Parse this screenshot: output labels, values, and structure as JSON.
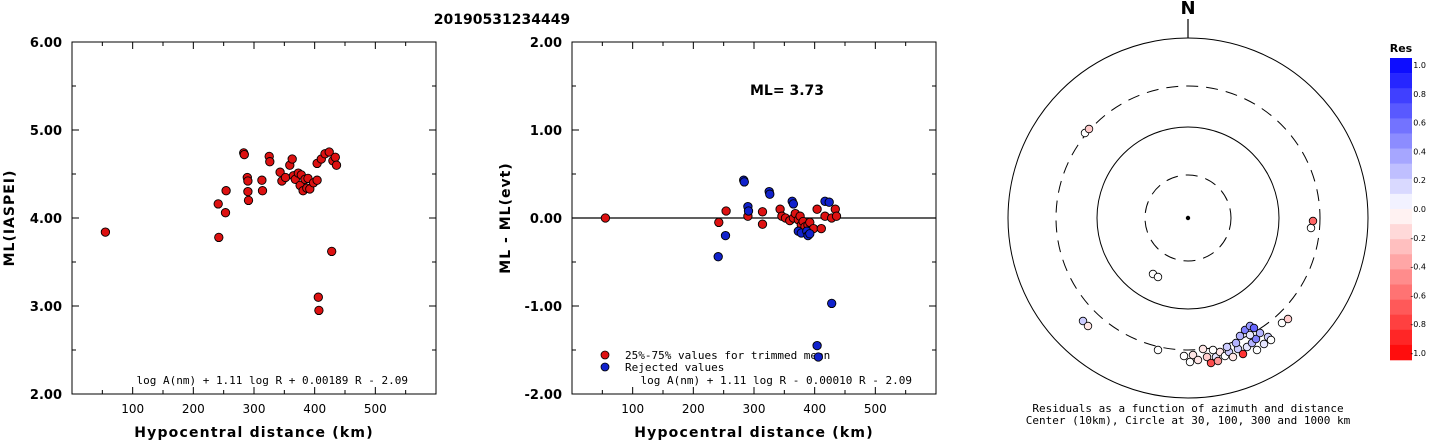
{
  "title": "20190531234449",
  "chart_data": [
    {
      "type": "scatter",
      "ylabel": "ML(IASPEI)",
      "xlabel": "Hypocentral distance (km)",
      "xlim": [
        0,
        600
      ],
      "ylim": [
        2.0,
        6.0
      ],
      "x_ticks": [
        "100",
        "200",
        "300",
        "400",
        "500"
      ],
      "y_ticks": [
        "2.00",
        "3.00",
        "4.00",
        "5.00",
        "6.00"
      ],
      "formula": "log A(nm) + 1.11 log R + 0.00189 R - 2.09",
      "points": [
        [
          55,
          3.84
        ],
        [
          241,
          4.16
        ],
        [
          242,
          3.78
        ],
        [
          253,
          4.06
        ],
        [
          254,
          4.31
        ],
        [
          283,
          4.74
        ],
        [
          284,
          4.72
        ],
        [
          289,
          4.46
        ],
        [
          290,
          4.42
        ],
        [
          290,
          4.3
        ],
        [
          291,
          4.2
        ],
        [
          313,
          4.43
        ],
        [
          314,
          4.31
        ],
        [
          325,
          4.7
        ],
        [
          326,
          4.64
        ],
        [
          343,
          4.52
        ],
        [
          346,
          4.42
        ],
        [
          352,
          4.46
        ],
        [
          359,
          4.6
        ],
        [
          363,
          4.67
        ],
        [
          365,
          4.48
        ],
        [
          368,
          4.44
        ],
        [
          373,
          4.51
        ],
        [
          376,
          4.37
        ],
        [
          378,
          4.49
        ],
        [
          381,
          4.31
        ],
        [
          384,
          4.44
        ],
        [
          387,
          4.34
        ],
        [
          389,
          4.45
        ],
        [
          392,
          4.33
        ],
        [
          398,
          4.4
        ],
        [
          404,
          4.43
        ],
        [
          406,
          3.1
        ],
        [
          407,
          2.95
        ],
        [
          404,
          4.62
        ],
        [
          411,
          4.67
        ],
        [
          417,
          4.73
        ],
        [
          424,
          4.75
        ],
        [
          428,
          3.62
        ],
        [
          430,
          4.65
        ],
        [
          434,
          4.69
        ],
        [
          436,
          4.6
        ]
      ]
    },
    {
      "type": "scatter",
      "ylabel": "ML - ML(evt)",
      "xlabel": "Hypocentral distance (km)",
      "xlim": [
        0,
        600
      ],
      "ylim": [
        -2.0,
        2.0
      ],
      "x_ticks": [
        "100",
        "200",
        "300",
        "400",
        "500"
      ],
      "y_ticks": [
        "-2.00",
        "-1.00",
        "0.00",
        "1.00",
        "2.00"
      ],
      "annotation": "ML= 3.73",
      "formula": "log A(nm) + 1.11 log R - 0.00010 R - 2.09",
      "legend": [
        {
          "label": "25%-75% values for trimmed mean",
          "color": "#dd1111"
        },
        {
          "label": "Rejected values",
          "color": "#1122cc"
        }
      ],
      "series": [
        {
          "name": "25%-75% values for trimmed mean",
          "color": "#dd1111",
          "points": [
            [
              55,
              0.0
            ],
            [
              242,
              -0.05
            ],
            [
              254,
              0.08
            ],
            [
              290,
              0.02
            ],
            [
              314,
              0.07
            ],
            [
              314,
              -0.07
            ],
            [
              343,
              0.1
            ],
            [
              346,
              0.02
            ],
            [
              352,
              0.0
            ],
            [
              359,
              -0.03
            ],
            [
              365,
              0.0
            ],
            [
              368,
              0.05
            ],
            [
              373,
              -0.02
            ],
            [
              376,
              0.02
            ],
            [
              378,
              -0.08
            ],
            [
              381,
              -0.04
            ],
            [
              384,
              -0.1
            ],
            [
              389,
              -0.08
            ],
            [
              392,
              -0.05
            ],
            [
              398,
              -0.12
            ],
            [
              404,
              0.1
            ],
            [
              411,
              -0.12
            ],
            [
              417,
              0.02
            ],
            [
              428,
              0.0
            ],
            [
              434,
              0.1
            ],
            [
              436,
              0.02
            ]
          ]
        },
        {
          "name": "Rejected values",
          "color": "#1122cc",
          "points": [
            [
              241,
              -0.44
            ],
            [
              253,
              -0.2
            ],
            [
              283,
              0.43
            ],
            [
              284,
              0.41
            ],
            [
              290,
              0.13
            ],
            [
              291,
              0.08
            ],
            [
              325,
              0.3
            ],
            [
              326,
              0.27
            ],
            [
              363,
              0.19
            ],
            [
              365,
              0.16
            ],
            [
              373,
              -0.15
            ],
            [
              378,
              -0.17
            ],
            [
              387,
              -0.15
            ],
            [
              389,
              -0.2
            ],
            [
              392,
              -0.18
            ],
            [
              404,
              -1.45
            ],
            [
              406,
              -1.58
            ],
            [
              417,
              0.19
            ],
            [
              424,
              0.18
            ],
            [
              428,
              -0.97
            ]
          ]
        }
      ]
    },
    {
      "type": "polar",
      "north_label": "N",
      "caption_line1": "Residuals as a function of azimuth and distance",
      "caption_line2": "Center (10km), Circle at 30, 100, 300 and 1000 km",
      "colorbar": {
        "title": "Res",
        "labels": [
          "1.0",
          "0.8",
          "0.6",
          "0.4",
          "0.2",
          "0.0",
          "-0.2",
          "-0.4",
          "-0.6",
          "-0.8",
          "-1.0"
        ]
      },
      "points": [
        [
          1085,
          133,
          0.0
        ],
        [
          1089,
          129,
          -0.2
        ],
        [
          1311,
          228,
          0.0
        ],
        [
          1313,
          221,
          -0.6
        ],
        [
          1153,
          274,
          0.0
        ],
        [
          1158,
          277,
          0.0
        ],
        [
          1083,
          321,
          0.2
        ],
        [
          1088,
          326,
          -0.1
        ],
        [
          1158,
          350,
          0.0
        ],
        [
          1184,
          356,
          0.0
        ],
        [
          1190,
          362,
          0.0
        ],
        [
          1193,
          355,
          -0.1
        ],
        [
          1203,
          349,
          -0.1
        ],
        [
          1207,
          357,
          -0.2
        ],
        [
          1211,
          363,
          -0.7
        ],
        [
          1216,
          357,
          0.1
        ],
        [
          1220,
          352,
          -0.1
        ],
        [
          1225,
          356,
          0.0
        ],
        [
          1229,
          352,
          0.2
        ],
        [
          1233,
          357,
          -0.1
        ],
        [
          1238,
          349,
          0.2
        ],
        [
          1243,
          354,
          -0.8
        ],
        [
          1247,
          347,
          0.1
        ],
        [
          1252,
          343,
          0.3
        ],
        [
          1256,
          339,
          0.5
        ],
        [
          1260,
          333,
          0.3
        ],
        [
          1264,
          344,
          0.1
        ],
        [
          1268,
          337,
          0.2
        ],
        [
          1271,
          340,
          0.0
        ],
        [
          1282,
          323,
          0.0
        ],
        [
          1288,
          319,
          -0.2
        ],
        [
          1240,
          336,
          0.3
        ],
        [
          1245,
          330,
          0.5
        ],
        [
          1250,
          326,
          0.4
        ],
        [
          1254,
          328,
          0.6
        ],
        [
          1236,
          343,
          0.3
        ],
        [
          1227,
          347,
          0.2
        ],
        [
          1218,
          361,
          -0.4
        ],
        [
          1198,
          360,
          -0.1
        ],
        [
          1213,
          350,
          0.0
        ],
        [
          1250,
          335,
          0.1
        ],
        [
          1257,
          350,
          0.0
        ]
      ]
    }
  ]
}
